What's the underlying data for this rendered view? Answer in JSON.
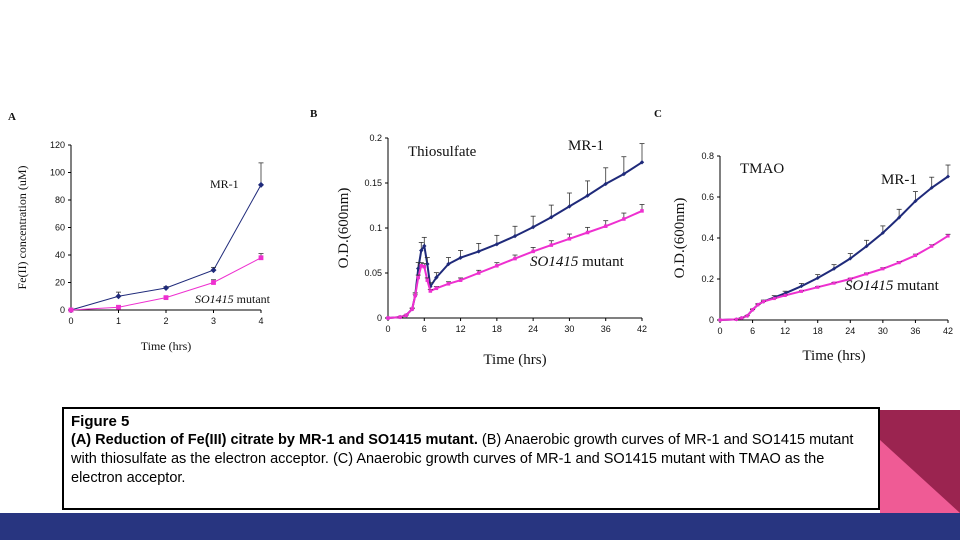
{
  "panels": {
    "a": {
      "letter": "A"
    },
    "b": {
      "letter": "B",
      "title": "Thiosulfate"
    },
    "c": {
      "letter": "C",
      "title": "TMAO"
    }
  },
  "caption": {
    "figure": "Figure 5",
    "part_a_bold": "(A) Reduction of Fe(III) citrate by MR-1 and SO1415 mutant.",
    "part_b": " (B) Anaerobic growth curves of MR-1 and SO1415 mutant with thiosulfate as the electron acceptor. (C) Anaerobic growth curves of MR-1 and SO1415 mutant with TMAO as the electron acceptor."
  },
  "colors": {
    "mr1": "#1f2a7a",
    "mutant": "#ee30d0",
    "bottom_bar": "#283580",
    "corner_dark": "#9b2450",
    "corner_light": "#ef5b95"
  },
  "chart_data": [
    {
      "type": "line",
      "panel": "A",
      "xlabel": "Time (hrs)",
      "ylabel": "Fe(II) concentration (uM)",
      "xlim": [
        0,
        4
      ],
      "ylim": [
        0,
        120
      ],
      "xticks": [
        0,
        1,
        2,
        3,
        4
      ],
      "yticks": [
        0,
        20,
        40,
        60,
        80,
        100,
        120
      ],
      "series": [
        {
          "name": "MR-1",
          "x": [
            0,
            1,
            2,
            3,
            4
          ],
          "values": [
            0,
            10,
            16,
            29,
            91
          ],
          "errors": [
            0,
            3,
            1,
            2,
            16
          ],
          "color": "#1f2a7a",
          "marker": "diamond"
        },
        {
          "name": "SO1415 mutant",
          "x": [
            0,
            1,
            2,
            3,
            4
          ],
          "values": [
            0,
            2,
            9,
            20,
            38
          ],
          "errors": [
            0,
            1,
            1,
            2,
            3
          ],
          "color": "#ee30d0",
          "marker": "square"
        }
      ]
    },
    {
      "type": "line",
      "panel": "B",
      "title": "Thiosulfate",
      "xlabel": "Time (hrs)",
      "ylabel": "O.D.(600nm)",
      "xlim": [
        0,
        42
      ],
      "ylim": [
        0,
        0.2
      ],
      "xticks": [
        0,
        6,
        12,
        18,
        24,
        30,
        36,
        42
      ],
      "yticks": [
        0,
        0.05,
        0.1,
        0.15,
        0.2
      ],
      "ytick_labels": [
        "0",
        "0.05",
        "0.1",
        "0.15",
        "0.2"
      ],
      "series": [
        {
          "name": "MR-1",
          "x": [
            0,
            2,
            3,
            4,
            4.5,
            5,
            5.5,
            6,
            6.5,
            7,
            8,
            10,
            12,
            15,
            18,
            21,
            24,
            27,
            30,
            33,
            36,
            39,
            42
          ],
          "values": [
            0,
            0.001,
            0.003,
            0.01,
            0.025,
            0.055,
            0.075,
            0.08,
            0.06,
            0.035,
            0.045,
            0.06,
            0.067,
            0.074,
            0.082,
            0.091,
            0.101,
            0.112,
            0.124,
            0.136,
            0.149,
            0.16,
            0.173
          ],
          "color": "#1f2a7a",
          "error_scale": 0.12
        },
        {
          "name": "SO1415 mutant",
          "x": [
            0,
            2,
            3,
            4,
            4.5,
            5,
            5.5,
            6,
            6.5,
            7,
            8,
            10,
            12,
            15,
            18,
            21,
            24,
            27,
            30,
            33,
            36,
            39,
            42
          ],
          "values": [
            0,
            0.001,
            0.003,
            0.01,
            0.025,
            0.045,
            0.058,
            0.057,
            0.042,
            0.03,
            0.033,
            0.038,
            0.042,
            0.05,
            0.058,
            0.066,
            0.074,
            0.081,
            0.088,
            0.095,
            0.102,
            0.11,
            0.119
          ],
          "color": "#ee30d0",
          "error_scale": 0.06
        }
      ]
    },
    {
      "type": "line",
      "panel": "C",
      "title": "TMAO",
      "xlabel": "Time (hrs)",
      "ylabel": "O.D.(600nm)",
      "xlim": [
        0,
        42
      ],
      "ylim": [
        0,
        0.8
      ],
      "xticks": [
        0,
        6,
        12,
        18,
        24,
        30,
        36,
        42
      ],
      "yticks": [
        0,
        0.2,
        0.4,
        0.6,
        0.8
      ],
      "ytick_labels": [
        "0",
        "0.2",
        "0.4",
        "0.6",
        "0.8"
      ],
      "series": [
        {
          "name": "MR-1",
          "x": [
            0,
            3,
            4,
            5,
            6,
            7,
            8,
            10,
            12,
            15,
            18,
            21,
            24,
            27,
            30,
            33,
            36,
            39,
            42
          ],
          "values": [
            0,
            0.003,
            0.01,
            0.02,
            0.05,
            0.075,
            0.09,
            0.11,
            0.13,
            0.165,
            0.205,
            0.25,
            0.3,
            0.36,
            0.425,
            0.5,
            0.58,
            0.645,
            0.7
          ],
          "color": "#1f2a7a",
          "error_scale": 0.08
        },
        {
          "name": "SO1415 mutant",
          "x": [
            0,
            3,
            4,
            5,
            6,
            7,
            8,
            10,
            12,
            15,
            18,
            21,
            24,
            27,
            30,
            33,
            36,
            39,
            42
          ],
          "values": [
            0,
            0.003,
            0.01,
            0.02,
            0.05,
            0.075,
            0.09,
            0.105,
            0.12,
            0.14,
            0.16,
            0.18,
            0.2,
            0.225,
            0.25,
            0.28,
            0.315,
            0.36,
            0.41
          ],
          "color": "#ee30d0",
          "error_scale": 0.02
        }
      ]
    }
  ]
}
